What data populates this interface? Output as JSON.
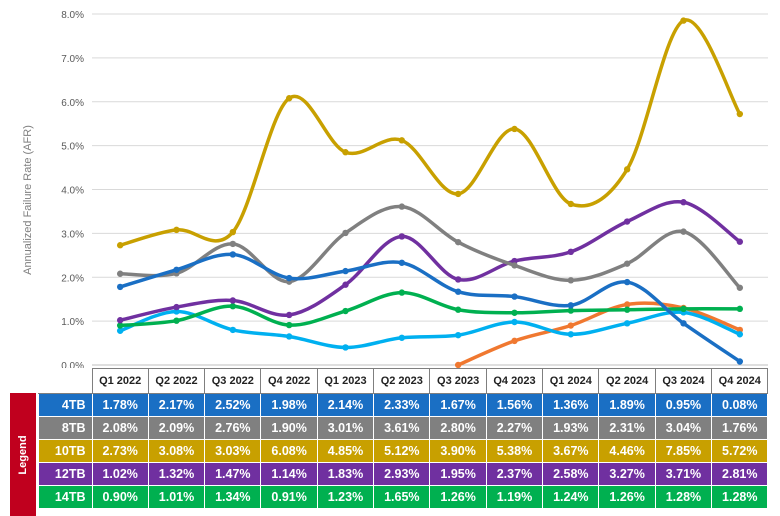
{
  "chart_data": {
    "type": "line",
    "ylabel": "Annualized Failure Rate (AFR)",
    "ylim": [
      0,
      8
    ],
    "yticks": [
      "0.0%",
      "1.0%",
      "2.0%",
      "3.0%",
      "4.0%",
      "5.0%",
      "6.0%",
      "7.0%",
      "8.0%"
    ],
    "grid": "horizontal",
    "categories": [
      "Q1 2022",
      "Q2 2022",
      "Q3 2022",
      "Q4 2022",
      "Q1 2023",
      "Q2 2023",
      "Q3 2023",
      "Q4 2023",
      "Q1 2024",
      "Q2 2024",
      "Q3 2024",
      "Q4 2024"
    ],
    "series": [
      {
        "name": "4TB",
        "color": "#1a6fc4",
        "values": [
          1.78,
          2.17,
          2.52,
          1.98,
          2.14,
          2.33,
          1.67,
          1.56,
          1.36,
          1.89,
          0.95,
          0.08
        ],
        "labels": [
          "1.78%",
          "2.17%",
          "2.52%",
          "1.98%",
          "2.14%",
          "2.33%",
          "1.67%",
          "1.56%",
          "1.36%",
          "1.89%",
          "0.95%",
          "0.08%"
        ]
      },
      {
        "name": "8TB",
        "color": "#808080",
        "values": [
          2.08,
          2.09,
          2.76,
          1.9,
          3.01,
          3.61,
          2.8,
          2.27,
          1.93,
          2.31,
          3.04,
          1.76
        ],
        "labels": [
          "2.08%",
          "2.09%",
          "2.76%",
          "1.90%",
          "3.01%",
          "3.61%",
          "2.80%",
          "2.27%",
          "1.93%",
          "2.31%",
          "3.04%",
          "1.76%"
        ]
      },
      {
        "name": "10TB",
        "color": "#c8a000",
        "values": [
          2.73,
          3.08,
          3.03,
          6.08,
          4.85,
          5.12,
          3.9,
          5.38,
          3.67,
          4.46,
          7.85,
          5.72
        ],
        "labels": [
          "2.73%",
          "3.08%",
          "3.03%",
          "6.08%",
          "4.85%",
          "5.12%",
          "3.90%",
          "5.38%",
          "3.67%",
          "4.46%",
          "7.85%",
          "5.72%"
        ]
      },
      {
        "name": "12TB",
        "color": "#7030a0",
        "values": [
          1.02,
          1.32,
          1.47,
          1.14,
          1.83,
          2.93,
          1.95,
          2.37,
          2.58,
          3.27,
          3.71,
          2.81
        ],
        "labels": [
          "1.02%",
          "1.32%",
          "1.47%",
          "1.14%",
          "1.83%",
          "2.93%",
          "1.95%",
          "2.37%",
          "2.58%",
          "3.27%",
          "3.71%",
          "2.81%"
        ]
      },
      {
        "name": "14TB",
        "color": "#00b050",
        "values": [
          0.9,
          1.01,
          1.34,
          0.91,
          1.23,
          1.65,
          1.26,
          1.19,
          1.24,
          1.26,
          1.28,
          1.28
        ],
        "labels": [
          "0.90%",
          "1.01%",
          "1.34%",
          "0.91%",
          "1.23%",
          "1.65%",
          "1.26%",
          "1.19%",
          "1.24%",
          "1.26%",
          "1.28%",
          "1.28%"
        ]
      },
      {
        "color": "#00b0f0",
        "values": [
          0.78,
          1.22,
          0.8,
          0.65,
          0.4,
          0.62,
          0.68,
          0.98,
          0.7,
          0.95,
          1.2,
          0.7
        ]
      },
      {
        "color": "#f07830",
        "values": [
          null,
          null,
          null,
          null,
          null,
          null,
          0.0,
          0.55,
          0.9,
          1.38,
          1.3,
          0.8
        ]
      }
    ],
    "legend_title": "Legend"
  }
}
